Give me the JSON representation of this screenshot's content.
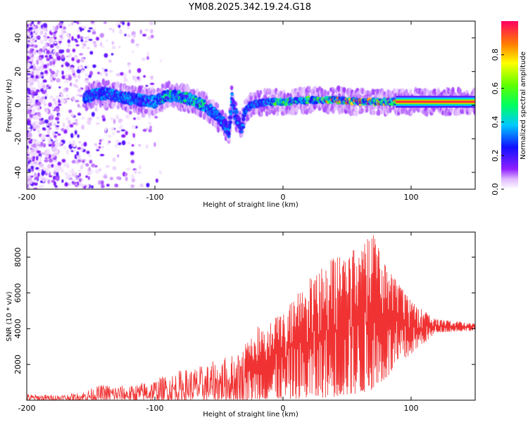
{
  "chart_data": [
    {
      "type": "heatmap",
      "title": "YM08.2025.342.19.24.G18",
      "xlabel": "Height of straight line (km)",
      "ylabel": "Frequency (Hz)",
      "xlim": [
        -200,
        150
      ],
      "ylim": [
        -50,
        50
      ],
      "x_ticks": [
        -200,
        -100,
        0,
        100
      ],
      "y_ticks": [
        -40,
        -20,
        0,
        20,
        40
      ],
      "ridge": {
        "description": "dominant frequency track (Hz) versus height (km)",
        "x": [
          -155,
          -140,
          -120,
          -100,
          -90,
          -80,
          -70,
          -60,
          -55,
          -50,
          -45,
          -42,
          -40,
          -38,
          -35,
          -32,
          -30,
          -25,
          -20,
          -10,
          0,
          20,
          40,
          60,
          80,
          90,
          100,
          150
        ],
        "y": [
          5,
          7,
          4,
          2,
          6,
          5,
          3,
          -1,
          -4,
          -8,
          -12,
          -18,
          5,
          -3,
          -10,
          -14,
          -4,
          0,
          1,
          2,
          2,
          3,
          3,
          2,
          2,
          2,
          2,
          2
        ]
      },
      "colorbar": {
        "label": "Normalized spectral amplitude",
        "range": [
          0.0,
          1.0
        ],
        "ticks": [
          "0.0",
          "0.2",
          "0.4",
          "0.6",
          "0.8"
        ],
        "colormap": "rainbow (white → magenta → blue → cyan → green → yellow → red)"
      }
    },
    {
      "type": "line",
      "xlabel": "Height of straight line (km)",
      "ylabel": "SNR (10 * v/v)",
      "xlim": [
        -200,
        150
      ],
      "ylim": [
        0,
        9400
      ],
      "x_ticks": [
        -200,
        -100,
        0,
        100
      ],
      "y_ticks": [
        2000,
        4000,
        6000,
        8000
      ],
      "series": [
        {
          "name": "SNR",
          "color": "#f03232",
          "envelope_x": [
            -200,
            -180,
            -160,
            -140,
            -120,
            -100,
            -80,
            -60,
            -40,
            -28,
            -20,
            0,
            20,
            40,
            60,
            70,
            80,
            100,
            120,
            150
          ],
          "envelope_hi": [
            350,
            300,
            400,
            900,
            800,
            1200,
            1700,
            2000,
            2600,
            3200,
            4200,
            4800,
            6800,
            8000,
            8600,
            9300,
            7500,
            5500,
            4500,
            4300
          ],
          "envelope_lo": [
            0,
            0,
            0,
            0,
            0,
            0,
            0,
            0,
            0,
            0,
            50,
            80,
            100,
            200,
            400,
            600,
            1200,
            2600,
            3800,
            3900
          ]
        }
      ]
    }
  ]
}
